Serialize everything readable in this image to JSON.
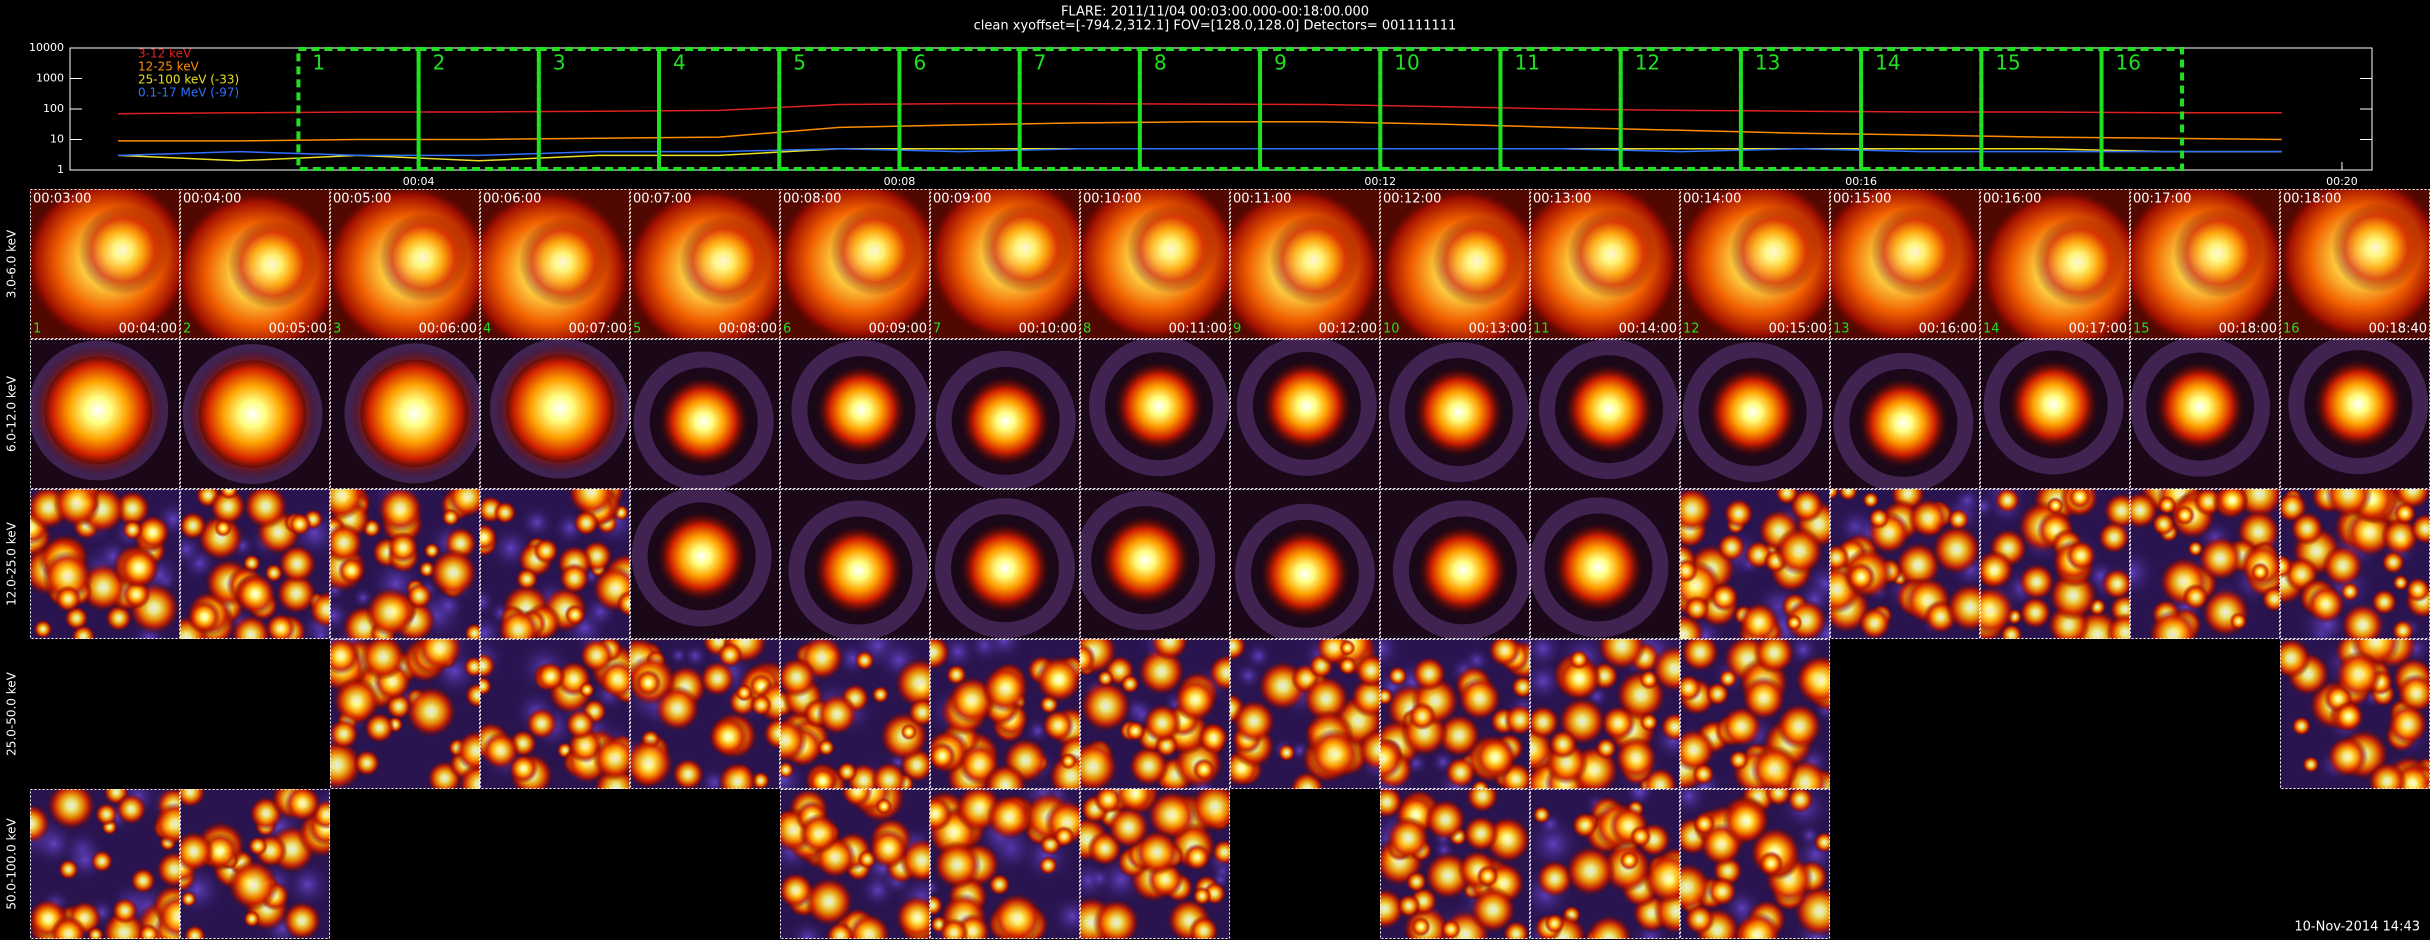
{
  "header": {
    "title": "FLARE: 2011/11/04 00:03:00.000-00:18:00.000",
    "subtitle": "clean    xyoffset=[-794.2,312.1]    FOV=[128.0,128.0]    Detectors= 001111111"
  },
  "chart_data": {
    "type": "line",
    "log_y": true,
    "ylim": [
      1,
      10000
    ],
    "yticks": [
      1,
      10,
      100,
      1000,
      10000
    ],
    "xlim": [
      1.1,
      20.25
    ],
    "xticks": [
      {
        "value": 4,
        "label": "00:04"
      },
      {
        "value": 8,
        "label": "00:08"
      },
      {
        "value": 12,
        "label": "00:12"
      },
      {
        "value": 16,
        "label": "00:16"
      },
      {
        "value": 20,
        "label": "00:20"
      }
    ],
    "x": [
      1.5,
      2.5,
      3.5,
      4.5,
      5.5,
      6.5,
      7.5,
      8.5,
      9.5,
      10.5,
      11.5,
      12.5,
      13.5,
      14.5,
      15.5,
      16.5,
      17.5,
      18.5,
      19.5
    ],
    "series": [
      {
        "name": "3-12 keV",
        "color": "#e02020",
        "values": [
          70,
          75,
          80,
          80,
          85,
          90,
          140,
          150,
          150,
          145,
          140,
          120,
          100,
          90,
          85,
          80,
          80,
          75,
          75
        ]
      },
      {
        "name": "12-25 keV",
        "color": "#ff8c00",
        "values": [
          9,
          9,
          10,
          10,
          11,
          12,
          25,
          30,
          35,
          38,
          38,
          32,
          25,
          20,
          16,
          14,
          12,
          11,
          10
        ]
      },
      {
        "name": "25-100 keV (-33)",
        "color": "#e8e020",
        "values": [
          3,
          2,
          3,
          2,
          3,
          3,
          5,
          5,
          5,
          5,
          5,
          5,
          5,
          5,
          5,
          5,
          5,
          4,
          4
        ]
      },
      {
        "name": "0.1-17 MeV (-97)",
        "color": "#3070ff",
        "values": [
          3,
          4,
          3,
          3,
          4,
          4,
          5,
          4,
          5,
          5,
          5,
          5,
          5,
          4,
          5,
          4,
          4,
          4,
          4
        ]
      }
    ],
    "intervals": [
      {
        "label": "1",
        "start": 3,
        "end": 4
      },
      {
        "label": "2",
        "start": 4,
        "end": 5
      },
      {
        "label": "3",
        "start": 5,
        "end": 6
      },
      {
        "label": "4",
        "start": 6,
        "end": 7
      },
      {
        "label": "5",
        "start": 7,
        "end": 8
      },
      {
        "label": "6",
        "start": 8,
        "end": 9
      },
      {
        "label": "7",
        "start": 9,
        "end": 10
      },
      {
        "label": "8",
        "start": 10,
        "end": 11
      },
      {
        "label": "9",
        "start": 11,
        "end": 12
      },
      {
        "label": "10",
        "start": 12,
        "end": 13
      },
      {
        "label": "11",
        "start": 13,
        "end": 14
      },
      {
        "label": "12",
        "start": 14,
        "end": 15
      },
      {
        "label": "13",
        "start": 15,
        "end": 16
      },
      {
        "label": "14",
        "start": 16,
        "end": 17
      },
      {
        "label": "15",
        "start": 17,
        "end": 18
      },
      {
        "label": "16",
        "start": 18,
        "end": 18.67
      }
    ],
    "interval_color": "#20e020"
  },
  "images": {
    "row_labels": [
      "3.0-6.0 keV",
      "6.0-12.0 keV",
      "12.0-25.0 keV",
      "25.0-50.0 keV",
      "50.0-100.0 keV"
    ],
    "columns": [
      {
        "start": "00:03:00",
        "end": "00:04:00",
        "index": "1"
      },
      {
        "start": "00:04:00",
        "end": "00:05:00",
        "index": "2"
      },
      {
        "start": "00:05:00",
        "end": "00:06:00",
        "index": "3"
      },
      {
        "start": "00:06:00",
        "end": "00:07:00",
        "index": "4"
      },
      {
        "start": "00:07:00",
        "end": "00:08:00",
        "index": "5"
      },
      {
        "start": "00:08:00",
        "end": "00:09:00",
        "index": "6"
      },
      {
        "start": "00:09:00",
        "end": "00:10:00",
        "index": "7"
      },
      {
        "start": "00:10:00",
        "end": "00:11:00",
        "index": "8"
      },
      {
        "start": "00:11:00",
        "end": "00:12:00",
        "index": "9"
      },
      {
        "start": "00:12:00",
        "end": "00:13:00",
        "index": "10"
      },
      {
        "start": "00:13:00",
        "end": "00:14:00",
        "index": "11"
      },
      {
        "start": "00:14:00",
        "end": "00:15:00",
        "index": "12"
      },
      {
        "start": "00:15:00",
        "end": "00:16:00",
        "index": "13"
      },
      {
        "start": "00:16:00",
        "end": "00:17:00",
        "index": "14"
      },
      {
        "start": "00:17:00",
        "end": "00:18:00",
        "index": "15"
      },
      {
        "start": "00:18:00",
        "end": "00:18:40",
        "index": "16"
      }
    ],
    "available": [
      [
        true,
        true,
        true,
        true,
        true,
        true,
        true,
        true,
        true,
        true,
        true,
        true,
        true,
        true,
        true,
        true
      ],
      [
        true,
        true,
        true,
        true,
        true,
        true,
        true,
        true,
        true,
        true,
        true,
        true,
        true,
        true,
        true,
        true
      ],
      [
        true,
        true,
        true,
        true,
        true,
        true,
        true,
        true,
        true,
        true,
        true,
        true,
        true,
        true,
        true,
        true
      ],
      [
        false,
        false,
        true,
        true,
        true,
        true,
        true,
        true,
        true,
        true,
        true,
        true,
        false,
        false,
        false,
        true
      ],
      [
        true,
        true,
        false,
        false,
        false,
        true,
        true,
        true,
        false,
        true,
        true,
        true,
        false,
        false,
        false,
        false
      ]
    ]
  },
  "footer": "10-Nov-2014 14:43"
}
